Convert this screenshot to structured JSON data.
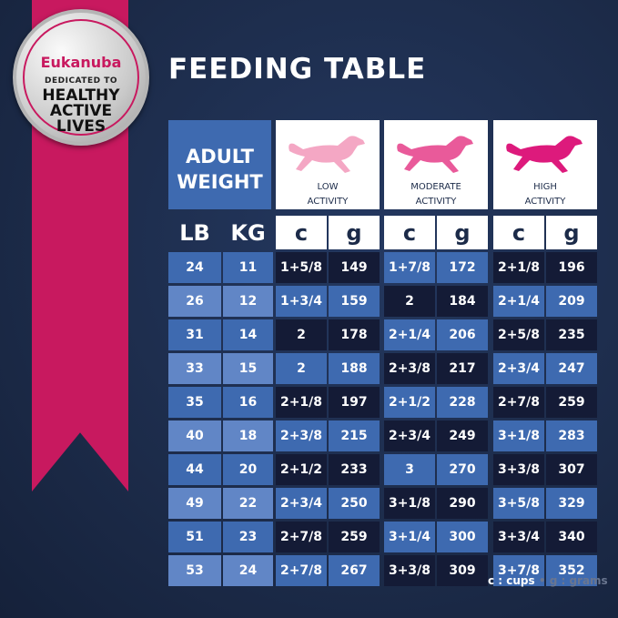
{
  "badge": {
    "brand": "Eukanuba",
    "dedicated": "DEDICATED TO",
    "line1": "HEALTHY",
    "line2": "ACTIVE",
    "line3": "LIVES",
    "tm": "TM MC"
  },
  "title": "FEEDING TABLE",
  "header": {
    "adult_weight": [
      "ADULT",
      "WEIGHT"
    ],
    "activities": [
      {
        "label": [
          "LOW",
          "ACTIVITY"
        ],
        "color": "#f4a7c4"
      },
      {
        "label": [
          "MODERATE",
          "ACTIVITY"
        ],
        "color": "#e95a9a"
      },
      {
        "label": [
          "HIGH",
          "ACTIVITY"
        ],
        "color": "#dd1a7c"
      }
    ],
    "lb": "LB",
    "kg": "KG",
    "c": "c",
    "g": "g"
  },
  "rows": [
    {
      "lb": "24",
      "kg": "11",
      "low": [
        "1+5/8",
        "149"
      ],
      "moderate": [
        "1+7/8",
        "172"
      ],
      "high": [
        "2+1/8",
        "196"
      ]
    },
    {
      "lb": "26",
      "kg": "12",
      "low": [
        "1+3/4",
        "159"
      ],
      "moderate": [
        "2",
        "184"
      ],
      "high": [
        "2+1/4",
        "209"
      ]
    },
    {
      "lb": "31",
      "kg": "14",
      "low": [
        "2",
        "178"
      ],
      "moderate": [
        "2+1/4",
        "206"
      ],
      "high": [
        "2+5/8",
        "235"
      ]
    },
    {
      "lb": "33",
      "kg": "15",
      "low": [
        "2",
        "188"
      ],
      "moderate": [
        "2+3/8",
        "217"
      ],
      "high": [
        "2+3/4",
        "247"
      ]
    },
    {
      "lb": "35",
      "kg": "16",
      "low": [
        "2+1/8",
        "197"
      ],
      "moderate": [
        "2+1/2",
        "228"
      ],
      "high": [
        "2+7/8",
        "259"
      ]
    },
    {
      "lb": "40",
      "kg": "18",
      "low": [
        "2+3/8",
        "215"
      ],
      "moderate": [
        "2+3/4",
        "249"
      ],
      "high": [
        "3+1/8",
        "283"
      ]
    },
    {
      "lb": "44",
      "kg": "20",
      "low": [
        "2+1/2",
        "233"
      ],
      "moderate": [
        "3",
        "270"
      ],
      "high": [
        "3+3/8",
        "307"
      ]
    },
    {
      "lb": "49",
      "kg": "22",
      "low": [
        "2+3/4",
        "250"
      ],
      "moderate": [
        "3+1/8",
        "290"
      ],
      "high": [
        "3+5/8",
        "329"
      ]
    },
    {
      "lb": "51",
      "kg": "23",
      "low": [
        "2+7/8",
        "259"
      ],
      "moderate": [
        "3+1/4",
        "300"
      ],
      "high": [
        "3+3/4",
        "340"
      ]
    },
    {
      "lb": "53",
      "kg": "24",
      "low": [
        "2+7/8",
        "267"
      ],
      "moderate": [
        "3+3/8",
        "309"
      ],
      "high": [
        "3+7/8",
        "352"
      ]
    }
  ],
  "legend": {
    "cups": "c : cups",
    "grams": "g : grams"
  },
  "colors": {
    "navy": "#1c2b49",
    "dark_cell": "#141b36",
    "blue_cell": "#3e6ab0",
    "light_cell": "#6186c6",
    "pink": "#c8195f"
  }
}
